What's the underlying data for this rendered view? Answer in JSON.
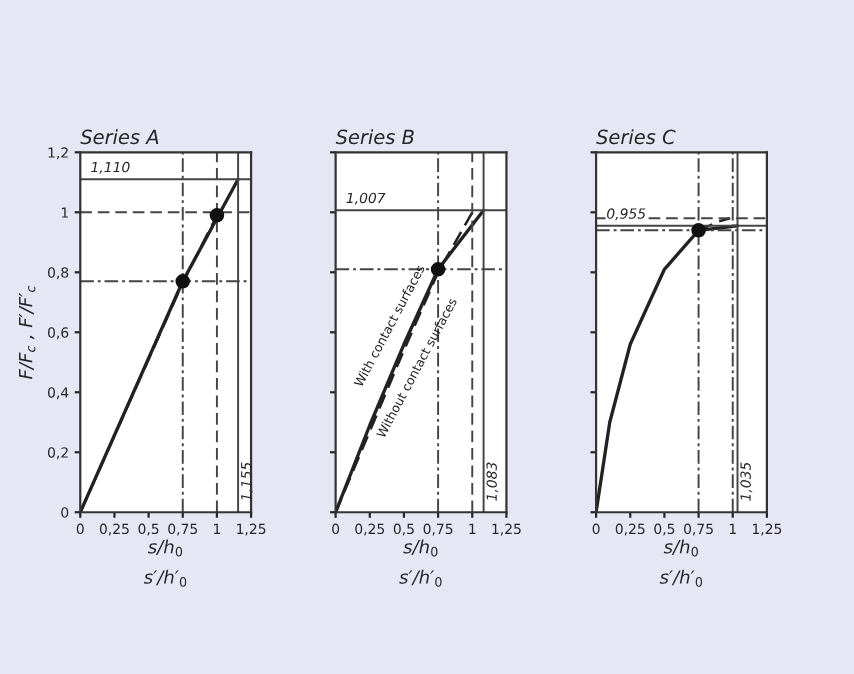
{
  "chart_data": [
    {
      "type": "line",
      "title": "Series A",
      "xlabel": "s/h$_{0}$",
      "ylabel": "F/F$_{c}$ , F′/F′$_{c}$",
      "annotations": [
        "s′/h′$_{0}$"
      ],
      "xlim": [
        0,
        1.25
      ],
      "ylim": [
        0,
        1.2
      ],
      "xticks": [
        {
          "value": 0,
          "label": "0"
        },
        {
          "value": 0.25,
          "label": "0,25"
        },
        {
          "value": 0.5,
          "label": "0,5"
        },
        {
          "value": 0.75,
          "label": "0,75"
        },
        {
          "value": 1,
          "label": "1"
        },
        {
          "value": 1.25,
          "label": "1,25"
        }
      ],
      "yticks": [
        {
          "value": 0,
          "label": "0"
        },
        {
          "value": 0.2,
          "label": "0,2"
        },
        {
          "value": 0.4,
          "label": "0,4"
        },
        {
          "value": 0.6,
          "label": "0,6"
        },
        {
          "value": 0.8,
          "label": "0,8"
        },
        {
          "value": 1,
          "label": "1"
        },
        {
          "value": 1.2,
          "label": "1,2"
        }
      ],
      "series": [
        {
          "color": "#222222",
          "x": [
            0,
            0.75,
            1.155
          ],
          "values": [
            0,
            0.77,
            1.11
          ],
          "line_style": "solid"
        },
        {
          "color": "#222222",
          "x": [
            0,
            0.75,
            1.0
          ],
          "values": [
            0,
            0.765,
            0.99
          ],
          "line_style": "dashed"
        },
        {
          "type": "scatter",
          "color": "#111111",
          "x": [
            0.75,
            1.0
          ],
          "values": [
            0.77,
            0.99
          ],
          "marker": "circle"
        }
      ],
      "ref_lines": [
        {
          "axis": "x",
          "value": 0.75,
          "line_style": "dashdot"
        },
        {
          "axis": "y",
          "value": 0.77,
          "line_style": "dashdot"
        },
        {
          "axis": "x",
          "value": 1,
          "line_style": "dashed"
        },
        {
          "axis": "y",
          "value": 1,
          "line_style": "dashed"
        },
        {
          "axis": "x",
          "value": 1.155,
          "label": "1,155",
          "line_style": "solid"
        },
        {
          "axis": "y",
          "value": 1.11,
          "label": "1,110",
          "line_style": "solid"
        }
      ],
      "grid": false,
      "legend": false
    },
    {
      "type": "line",
      "title": "Series B",
      "xlabel": "s/h$_{0}$",
      "annotations": [
        "s′/h′$_{0}$"
      ],
      "xlim": [
        0,
        1.25
      ],
      "ylim": [
        0,
        1.2
      ],
      "tick_labels": "x",
      "xticks": [
        {
          "value": 0,
          "label": "0"
        },
        {
          "value": 0.25,
          "label": "0,25"
        },
        {
          "value": 0.5,
          "label": "0,5"
        },
        {
          "value": 0.75,
          "label": "0,75"
        },
        {
          "value": 1,
          "label": "1"
        },
        {
          "value": 1.25,
          "label": "1,25"
        }
      ],
      "yticks": [
        {
          "value": 0,
          "label": null
        },
        {
          "value": 0.2,
          "label": null
        },
        {
          "value": 0.4,
          "label": null
        },
        {
          "value": 0.6,
          "label": null
        },
        {
          "value": 0.8,
          "label": null
        },
        {
          "value": 1,
          "label": null
        },
        {
          "value": 1.2,
          "label": null
        }
      ],
      "series": [
        {
          "name": "With contact surfaces",
          "color": "#222222",
          "x": [
            0,
            0.25,
            0.5,
            0.75,
            1.083
          ],
          "values": [
            0,
            0.29,
            0.56,
            0.81,
            1.007
          ],
          "line_style": "solid"
        },
        {
          "name": "Without contact surfaces",
          "color": "#222222",
          "x": [
            0,
            0.25,
            0.5,
            0.75,
            1.0
          ],
          "values": [
            0,
            0.27,
            0.54,
            0.8,
            1.0
          ],
          "line_style": "dashed"
        },
        {
          "type": "scatter",
          "color": "#111111",
          "x": [
            0.75
          ],
          "values": [
            0.81
          ],
          "marker": "circle"
        }
      ],
      "ref_lines": [
        {
          "axis": "x",
          "value": 0.75,
          "line_style": "dashdot"
        },
        {
          "axis": "y",
          "value": 0.81,
          "line_style": "dashdot"
        },
        {
          "axis": "x",
          "value": 1,
          "line_style": "dashed"
        },
        {
          "axis": "x",
          "value": 1.083,
          "label": "1,083",
          "line_style": "solid"
        },
        {
          "axis": "y",
          "value": 1.007,
          "label": "1,007",
          "line_style": "solid"
        }
      ],
      "grid": false,
      "legend": false
    },
    {
      "type": "line",
      "title": "Series C",
      "xlabel": "s/h$_{0}$",
      "annotations": [
        "s′/h′$_{0}$"
      ],
      "xlim": [
        0,
        1.25
      ],
      "ylim": [
        0,
        1.2
      ],
      "tick_labels": "x",
      "xticks": [
        {
          "value": 0,
          "label": "0"
        },
        {
          "value": 0.25,
          "label": "0,25"
        },
        {
          "value": 0.5,
          "label": "0,5"
        },
        {
          "value": 0.75,
          "label": "0,75"
        },
        {
          "value": 1,
          "label": "1"
        },
        {
          "value": 1.25,
          "label": "1,25"
        }
      ],
      "yticks": [
        {
          "value": 0,
          "label": null
        },
        {
          "value": 0.2,
          "label": null
        },
        {
          "value": 0.4,
          "label": null
        },
        {
          "value": 0.6,
          "label": null
        },
        {
          "value": 0.8,
          "label": null
        },
        {
          "value": 1,
          "label": null
        },
        {
          "value": 1.2,
          "label": null
        }
      ],
      "series": [
        {
          "color": "#222222",
          "x": [
            0,
            0.1,
            0.25,
            0.5,
            0.75,
            1.035
          ],
          "values": [
            0,
            0.3,
            0.56,
            0.81,
            0.94,
            0.955
          ],
          "line_style": "solid"
        },
        {
          "color": "#222222",
          "x": [
            0.75,
            0.9,
            0.98
          ],
          "values": [
            0.94,
            0.97,
            0.98
          ],
          "line_style": "dashed"
        },
        {
          "type": "scatter",
          "color": "#111111",
          "x": [
            0.75
          ],
          "values": [
            0.94
          ],
          "marker": "circle"
        }
      ],
      "ref_lines": [
        {
          "axis": "x",
          "value": 0.75,
          "line_style": "dashdot"
        },
        {
          "axis": "y",
          "value": 0.94,
          "line_style": "dashdot"
        },
        {
          "axis": "x",
          "value": 1,
          "line_style": "dashdot"
        },
        {
          "axis": "y",
          "value": 0.98,
          "line_style": "dashed"
        },
        {
          "axis": "x",
          "value": 1.035,
          "label": "1,035",
          "line_style": "solid"
        },
        {
          "axis": "y",
          "value": 0.955,
          "label": "0,955",
          "line_style": "solid"
        }
      ],
      "grid": false,
      "legend": false
    }
  ]
}
